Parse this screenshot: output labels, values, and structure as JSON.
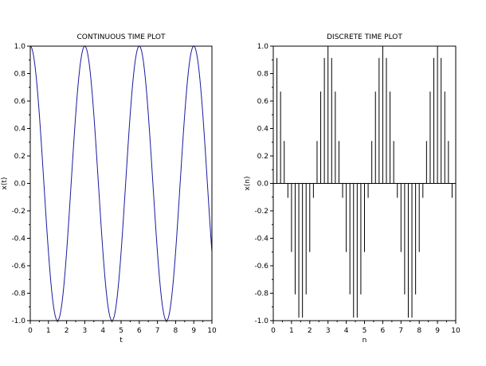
{
  "chart_data": [
    {
      "type": "line",
      "title": "CONTINUOUS TIME PLOT",
      "xlabel": "t",
      "ylabel": "x(t)",
      "xlim": [
        0,
        10
      ],
      "ylim": [
        -1,
        1
      ],
      "x_ticks": [
        "0",
        "1",
        "2",
        "3",
        "4",
        "5",
        "6",
        "7",
        "8",
        "9",
        "10"
      ],
      "y_ticks": [
        "-1.0",
        "-0.8",
        "-0.6",
        "-0.4",
        "-0.2",
        "0.0",
        "0.2",
        "0.4",
        "0.6",
        "0.8",
        "1.0"
      ],
      "series": [
        {
          "function": "cos(2*pi*t/3)",
          "t_range": [
            0,
            10
          ],
          "color": "#1a1aa0"
        }
      ],
      "grid": false
    },
    {
      "type": "stem",
      "title": "DISCRETE TIME PLOT",
      "xlabel": "n",
      "ylabel": "x(n)",
      "xlim": [
        0,
        10
      ],
      "ylim": [
        -1,
        1
      ],
      "x_ticks": [
        "0",
        "1",
        "2",
        "3",
        "4",
        "5",
        "6",
        "7",
        "8",
        "9",
        "10"
      ],
      "y_ticks": [
        "-1.0",
        "-0.8",
        "-0.6",
        "-0.4",
        "-0.2",
        "0.0",
        "0.2",
        "0.4",
        "0.6",
        "0.8",
        "1.0"
      ],
      "n_step": 0.2,
      "x": [
        0,
        0.2,
        0.4,
        0.6,
        0.8,
        1,
        1.2,
        1.4,
        1.6,
        1.8,
        2,
        2.2,
        2.4,
        2.6,
        2.8,
        3,
        3.2,
        3.4,
        3.6,
        3.8,
        4,
        4.2,
        4.4,
        4.6,
        4.8,
        5,
        5.2,
        5.4,
        5.6,
        5.8,
        6,
        6.2,
        6.4,
        6.6,
        6.8,
        7,
        7.2,
        7.4,
        7.6,
        7.8,
        8,
        8.2,
        8.4,
        8.6,
        8.8,
        9,
        9.2,
        9.4,
        9.6,
        9.8,
        10
      ],
      "values": [
        1,
        0.914,
        0.669,
        0.309,
        -0.105,
        -0.5,
        -0.809,
        -0.978,
        -0.978,
        -0.809,
        -0.5,
        -0.105,
        0.309,
        0.669,
        0.914,
        1,
        0.914,
        0.669,
        0.309,
        -0.105,
        -0.5,
        -0.809,
        -0.978,
        -0.978,
        -0.809,
        -0.5,
        -0.105,
        0.309,
        0.669,
        0.914,
        1,
        0.914,
        0.669,
        0.309,
        -0.105,
        -0.5,
        -0.809,
        -0.978,
        -0.978,
        -0.809,
        -0.5,
        -0.105,
        0.309,
        0.669,
        0.914,
        1,
        0.914,
        0.669,
        0.309,
        -0.105,
        -0.5
      ],
      "color": "#000000",
      "grid": false
    }
  ]
}
